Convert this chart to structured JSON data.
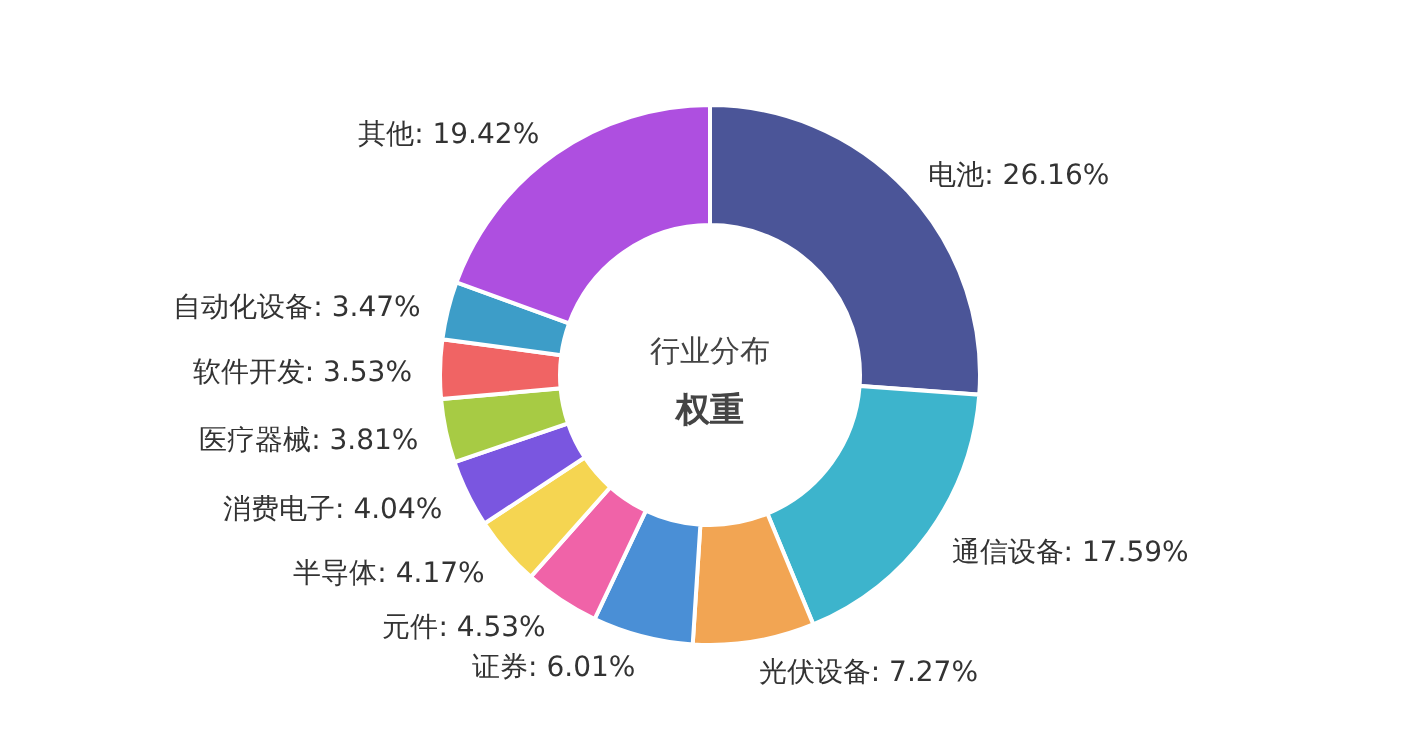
{
  "chart_data": {
    "type": "donut",
    "title": "行业分布",
    "subtitle": "权重",
    "categories": [
      "电池",
      "通信设备",
      "光伏设备",
      "证券",
      "元件",
      "半导体",
      "消费电子",
      "医疗器械",
      "软件开发",
      "自动化设备",
      "其他"
    ],
    "values": [
      26.16,
      17.59,
      7.27,
      6.01,
      4.53,
      4.17,
      4.04,
      3.81,
      3.53,
      3.47,
      19.42
    ],
    "value_labels": [
      "26.16%",
      "17.59%",
      "7.27%",
      "6.01%",
      "4.53%",
      "4.17%",
      "4.04%",
      "3.81%",
      "3.53%",
      "3.47%",
      "19.42%"
    ],
    "colors": [
      "#4b5598",
      "#3db4cc",
      "#f2a553",
      "#4a8fd6",
      "#f063a8",
      "#f5d551",
      "#7a56e0",
      "#a7cb44",
      "#f06464",
      "#3d9dc8",
      "#ae4fe0"
    ]
  }
}
